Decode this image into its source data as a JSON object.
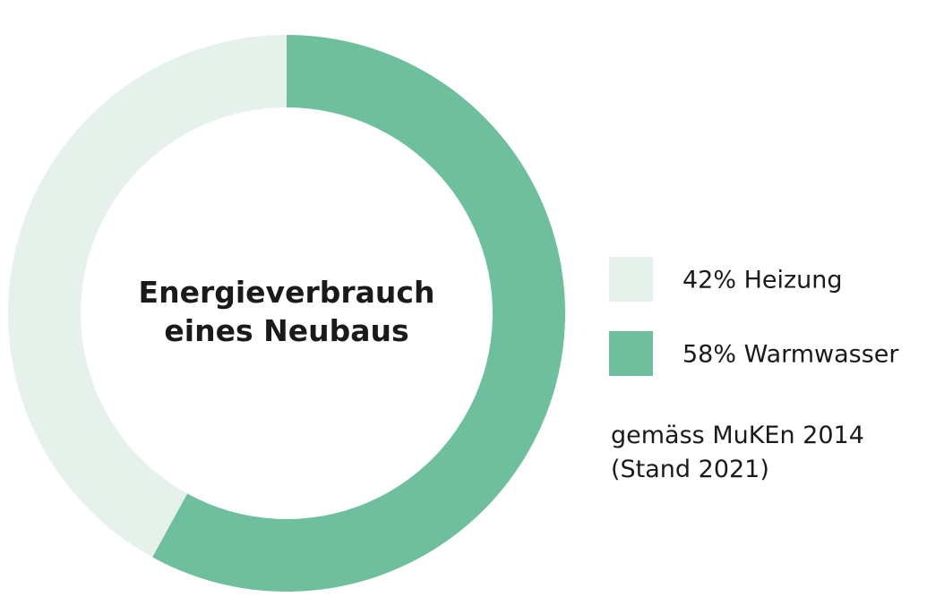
{
  "chart_data": {
    "type": "donut",
    "title": "Energieverbrauch eines Neubaus",
    "categories": [
      "42% Heizung",
      "58% Warmwasser"
    ],
    "values": [
      42,
      58
    ],
    "colors": [
      "#e6f1eb",
      "#6dbf9e"
    ],
    "note": "gemäss MuKEn 2014 (Stand 2021)"
  }
}
